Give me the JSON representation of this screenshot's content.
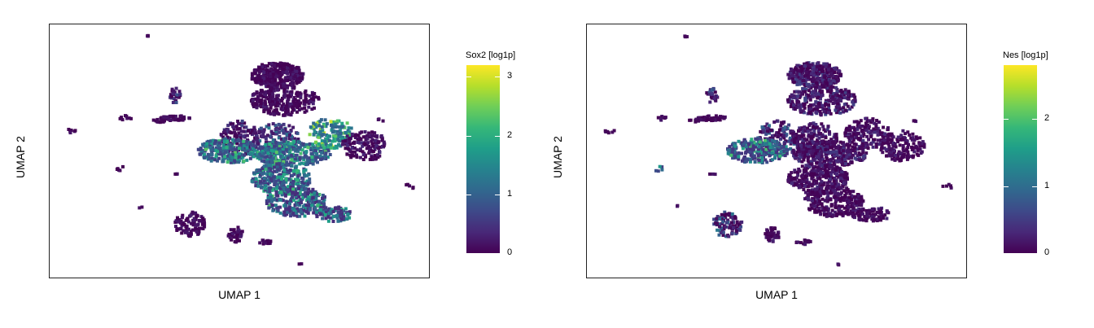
{
  "chart_data": [
    {
      "type": "scatter",
      "title": "",
      "xlabel": "UMAP 1",
      "ylabel": "UMAP 2",
      "colorbar": {
        "title": "Sox2 [log1p]",
        "colormap": "viridis",
        "range": [
          0,
          3.2
        ],
        "ticks": [
          "0",
          "1",
          "2",
          "3"
        ],
        "tick_values": [
          0,
          1,
          2,
          3
        ]
      },
      "xlim": [
        0,
        100
      ],
      "ylim": [
        0,
        100
      ],
      "grid": false,
      "clusters": [
        {
          "x": 60,
          "y": 20,
          "rx": 7,
          "ry": 5,
          "n": 340,
          "lvl": [
            0,
            0.3
          ]
        },
        {
          "x": 62,
          "y": 30,
          "rx": 9,
          "ry": 6,
          "n": 280,
          "lvl": [
            0,
            0.3
          ]
        },
        {
          "x": 50,
          "y": 45,
          "rx": 5,
          "ry": 7,
          "n": 140,
          "lvl": [
            0,
            0.7
          ]
        },
        {
          "x": 60,
          "y": 45,
          "rx": 6,
          "ry": 6,
          "n": 160,
          "lvl": [
            0.2,
            1.4
          ]
        },
        {
          "x": 47,
          "y": 50,
          "rx": 8,
          "ry": 5,
          "n": 260,
          "lvl": [
            0.6,
            2.4
          ]
        },
        {
          "x": 64,
          "y": 51,
          "rx": 10,
          "ry": 5,
          "n": 330,
          "lvl": [
            0.6,
            2.4
          ]
        },
        {
          "x": 74,
          "y": 43,
          "rx": 6,
          "ry": 6,
          "n": 150,
          "lvl": [
            1.0,
            3.0
          ]
        },
        {
          "x": 61,
          "y": 61,
          "rx": 8,
          "ry": 6,
          "n": 300,
          "lvl": [
            0.5,
            2.2
          ]
        },
        {
          "x": 65,
          "y": 70,
          "rx": 8,
          "ry": 6,
          "n": 260,
          "lvl": [
            0.4,
            2.3
          ]
        },
        {
          "x": 75,
          "y": 75,
          "rx": 5,
          "ry": 3,
          "n": 80,
          "lvl": [
            0.4,
            2.0
          ]
        },
        {
          "x": 83,
          "y": 48,
          "rx": 6,
          "ry": 6,
          "n": 150,
          "lvl": [
            0,
            0.4
          ]
        },
        {
          "x": 37,
          "y": 79,
          "rx": 4,
          "ry": 5,
          "n": 90,
          "lvl": [
            0,
            0.3
          ]
        },
        {
          "x": 49,
          "y": 83,
          "rx": 2,
          "ry": 3,
          "n": 40,
          "lvl": [
            0,
            0.3
          ]
        },
        {
          "x": 57,
          "y": 86,
          "rx": 2,
          "ry": 1,
          "n": 15,
          "lvl": [
            0,
            0.2
          ]
        },
        {
          "x": 33,
          "y": 37,
          "rx": 4,
          "ry": 1,
          "n": 40,
          "lvl": [
            0,
            0.2
          ]
        },
        {
          "x": 33,
          "y": 28,
          "rx": 1.5,
          "ry": 3,
          "n": 25,
          "lvl": [
            0,
            0.8
          ]
        },
        {
          "x": 20,
          "y": 37,
          "rx": 1.5,
          "ry": 1,
          "n": 8,
          "lvl": [
            0,
            0.2
          ]
        },
        {
          "x": 29,
          "y": 38,
          "rx": 2,
          "ry": 0.7,
          "n": 10,
          "lvl": [
            0,
            0.2
          ]
        },
        {
          "x": 6,
          "y": 42,
          "rx": 1.5,
          "ry": 1,
          "n": 6,
          "lvl": [
            0,
            0.2
          ]
        },
        {
          "x": 19,
          "y": 57,
          "rx": 1.5,
          "ry": 1,
          "n": 5,
          "lvl": [
            0,
            0.2
          ]
        },
        {
          "x": 87,
          "y": 38,
          "rx": 1,
          "ry": 1,
          "n": 3,
          "lvl": [
            0,
            0.2
          ]
        },
        {
          "x": 95,
          "y": 64,
          "rx": 1.5,
          "ry": 1,
          "n": 5,
          "lvl": [
            0,
            0.2
          ]
        },
        {
          "x": 26,
          "y": 5,
          "rx": 0.6,
          "ry": 0.6,
          "n": 3,
          "lvl": [
            0,
            0.2
          ]
        },
        {
          "x": 66,
          "y": 95,
          "rx": 0.6,
          "ry": 0.6,
          "n": 2,
          "lvl": [
            0,
            0.2
          ]
        },
        {
          "x": 24,
          "y": 72,
          "rx": 0.6,
          "ry": 0.6,
          "n": 2,
          "lvl": [
            0,
            0.2
          ]
        },
        {
          "x": 33,
          "y": 59,
          "rx": 1,
          "ry": 0.6,
          "n": 3,
          "lvl": [
            0,
            0.2
          ]
        }
      ]
    },
    {
      "type": "scatter",
      "title": "",
      "xlabel": "UMAP 1",
      "ylabel": "UMAP 2",
      "colorbar": {
        "title": "Nes [log1p]",
        "colormap": "viridis",
        "range": [
          0,
          2.8
        ],
        "ticks": [
          "0",
          "1",
          "2"
        ],
        "tick_values": [
          0,
          1,
          2
        ]
      },
      "xlim": [
        0,
        100
      ],
      "ylim": [
        0,
        100
      ],
      "grid": false,
      "clusters": [
        {
          "x": 60,
          "y": 20,
          "rx": 7,
          "ry": 5,
          "n": 340,
          "lvl": [
            0,
            0.6
          ]
        },
        {
          "x": 62,
          "y": 30,
          "rx": 9,
          "ry": 6,
          "n": 280,
          "lvl": [
            0,
            0.6
          ]
        },
        {
          "x": 50,
          "y": 45,
          "rx": 5,
          "ry": 7,
          "n": 140,
          "lvl": [
            0,
            1.0
          ]
        },
        {
          "x": 60,
          "y": 45,
          "rx": 6,
          "ry": 6,
          "n": 160,
          "lvl": [
            0,
            0.5
          ]
        },
        {
          "x": 45,
          "y": 50,
          "rx": 8,
          "ry": 5,
          "n": 260,
          "lvl": [
            0.4,
            2.0
          ]
        },
        {
          "x": 64,
          "y": 51,
          "rx": 10,
          "ry": 5,
          "n": 330,
          "lvl": [
            0,
            0.5
          ]
        },
        {
          "x": 74,
          "y": 43,
          "rx": 6,
          "ry": 6,
          "n": 150,
          "lvl": [
            0,
            0.4
          ]
        },
        {
          "x": 61,
          "y": 61,
          "rx": 8,
          "ry": 6,
          "n": 300,
          "lvl": [
            0,
            0.4
          ]
        },
        {
          "x": 65,
          "y": 70,
          "rx": 8,
          "ry": 6,
          "n": 260,
          "lvl": [
            0,
            0.3
          ]
        },
        {
          "x": 75,
          "y": 75,
          "rx": 5,
          "ry": 3,
          "n": 80,
          "lvl": [
            0,
            0.3
          ]
        },
        {
          "x": 83,
          "y": 48,
          "rx": 6,
          "ry": 6,
          "n": 150,
          "lvl": [
            0,
            0.3
          ]
        },
        {
          "x": 37,
          "y": 79,
          "rx": 4,
          "ry": 5,
          "n": 90,
          "lvl": [
            0,
            1.2
          ]
        },
        {
          "x": 49,
          "y": 83,
          "rx": 2,
          "ry": 3,
          "n": 40,
          "lvl": [
            0,
            0.3
          ]
        },
        {
          "x": 57,
          "y": 86,
          "rx": 2,
          "ry": 1,
          "n": 15,
          "lvl": [
            0,
            0.2
          ]
        },
        {
          "x": 33,
          "y": 37,
          "rx": 4,
          "ry": 1,
          "n": 40,
          "lvl": [
            0,
            0.2
          ]
        },
        {
          "x": 33,
          "y": 28,
          "rx": 1.5,
          "ry": 3,
          "n": 25,
          "lvl": [
            0,
            1.2
          ]
        },
        {
          "x": 20,
          "y": 37,
          "rx": 1.5,
          "ry": 1,
          "n": 8,
          "lvl": [
            0,
            0.2
          ]
        },
        {
          "x": 29,
          "y": 38,
          "rx": 2,
          "ry": 0.7,
          "n": 10,
          "lvl": [
            0,
            0.2
          ]
        },
        {
          "x": 6,
          "y": 42,
          "rx": 1.5,
          "ry": 1,
          "n": 6,
          "lvl": [
            0,
            0.2
          ]
        },
        {
          "x": 19,
          "y": 57,
          "rx": 1.5,
          "ry": 1,
          "n": 5,
          "lvl": [
            0.3,
            1.5
          ]
        },
        {
          "x": 87,
          "y": 38,
          "rx": 1,
          "ry": 1,
          "n": 3,
          "lvl": [
            0,
            0.2
          ]
        },
        {
          "x": 95,
          "y": 64,
          "rx": 1.5,
          "ry": 1,
          "n": 5,
          "lvl": [
            0,
            0.2
          ]
        },
        {
          "x": 26,
          "y": 5,
          "rx": 0.6,
          "ry": 0.6,
          "n": 3,
          "lvl": [
            0,
            0.2
          ]
        },
        {
          "x": 66,
          "y": 95,
          "rx": 0.6,
          "ry": 0.6,
          "n": 2,
          "lvl": [
            0,
            0.2
          ]
        },
        {
          "x": 24,
          "y": 72,
          "rx": 0.6,
          "ry": 0.6,
          "n": 2,
          "lvl": [
            0,
            0.2
          ]
        },
        {
          "x": 33,
          "y": 59,
          "rx": 1,
          "ry": 0.6,
          "n": 3,
          "lvl": [
            0,
            0.2
          ]
        }
      ]
    }
  ]
}
